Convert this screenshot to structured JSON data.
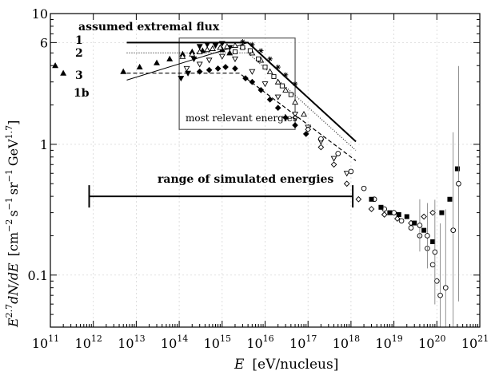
{
  "chart_data": {
    "type": "scatter",
    "title": "",
    "xlabel": "E  [eV/nucleus]",
    "ylabel": "E^{2.7} dN/dE  [cm^{-2} s^{-1} sr^{-1} GeV^{1.7}]",
    "x_scale": "log",
    "y_scale": "log",
    "xlim": [
      100000000000.0,
      1e+21
    ],
    "ylim": [
      0.04,
      10
    ],
    "grid": true,
    "x_ticks": [
      {
        "base": "10",
        "exp": "11",
        "value": 100000000000.0
      },
      {
        "base": "10",
        "exp": "12",
        "value": 1000000000000.0
      },
      {
        "base": "10",
        "exp": "13",
        "value": 10000000000000.0
      },
      {
        "base": "10",
        "exp": "14",
        "value": 100000000000000.0
      },
      {
        "base": "10",
        "exp": "15",
        "value": 1000000000000000.0
      },
      {
        "base": "10",
        "exp": "16",
        "value": 1e+16
      },
      {
        "base": "10",
        "exp": "17",
        "value": 1e+17
      },
      {
        "base": "10",
        "exp": "18",
        "value": 1e+18
      },
      {
        "base": "10",
        "exp": "19",
        "value": 1e+19
      },
      {
        "base": "10",
        "exp": "20",
        "value": 1e+20
      },
      {
        "base": "10",
        "exp": "21",
        "value": 1e+21
      }
    ],
    "y_ticks": [
      {
        "label": "10",
        "value": 10
      },
      {
        "label": "6",
        "value": 6
      },
      {
        "label": "1",
        "value": 1
      },
      {
        "label": "0.1",
        "value": 0.1
      }
    ],
    "annotations": {
      "extremal_header": "assumed extremal flux",
      "curve_labels": [
        "1",
        "2",
        "3",
        "1b"
      ],
      "box_label": "most relevant energies",
      "range_label": "range of simulated  energies"
    },
    "model_curves": [
      {
        "label": "1",
        "style": "solid-bold",
        "points": [
          [
            6000000000000.0,
            6
          ],
          [
            4000000000000000.0,
            6
          ],
          [
            1.3e+18,
            1.05
          ]
        ]
      },
      {
        "label": "2",
        "style": "dotted",
        "points": [
          [
            6000000000000.0,
            5
          ],
          [
            4000000000000000.0,
            5
          ],
          [
            1.3e+18,
            0.9
          ]
        ]
      },
      {
        "label": "3",
        "style": "dashed",
        "points": [
          [
            6000000000000.0,
            3.5
          ],
          [
            2500000000000000.0,
            3.5
          ],
          [
            1.3e+18,
            0.75
          ]
        ]
      },
      {
        "label": "1b",
        "style": "solid-thin",
        "points": [
          [
            6000000000000.0,
            3.1
          ],
          [
            4000000000000000.0,
            6
          ],
          [
            1.3e+18,
            1.05
          ]
        ]
      }
    ],
    "relevant_box": {
      "x": [
        100000000000000.0,
        5e+16
      ],
      "y": [
        1.3,
        6.5
      ]
    },
    "simulated_range": {
      "x": [
        800000000000.0,
        1.1e+18
      ],
      "y": 0.4
    },
    "series": [
      {
        "name": "",
        "marker": "triangle-up",
        "fill": "black",
        "points": [
          [
            130000000000.0,
            4.0
          ],
          [
            200000000000.0,
            3.5
          ],
          [
            5000000000000.0,
            3.6
          ],
          [
            12000000000000.0,
            3.9
          ],
          [
            30000000000000.0,
            4.2
          ],
          [
            60000000000000.0,
            4.5
          ],
          [
            120000000000000.0,
            4.9
          ],
          [
            200000000000000.0,
            5.1
          ],
          [
            350000000000000.0,
            5.2
          ],
          [
            600000000000000.0,
            5.4
          ],
          [
            1000000000000000.0,
            5.3
          ],
          [
            1500000000000000.0,
            5.0
          ]
        ]
      },
      {
        "name": "",
        "marker": "triangle-down",
        "fill": "black",
        "points": [
          [
            110000000000000.0,
            3.2
          ],
          [
            160000000000000.0,
            3.5
          ],
          [
            220000000000000.0,
            4.5
          ],
          [
            300000000000000.0,
            5.6
          ],
          [
            450000000000000.0,
            5.8
          ],
          [
            700000000000000.0,
            5.7
          ],
          [
            1000000000000000.0,
            5.9
          ],
          [
            1500000000000000.0,
            5.5
          ]
        ]
      },
      {
        "name": "",
        "marker": "triangle-up",
        "fill": "white",
        "points": [
          [
            120000000000000.0,
            4.7
          ],
          [
            200000000000000.0,
            4.9
          ],
          [
            300000000000000.0,
            5.1
          ],
          [
            450000000000000.0,
            5.3
          ],
          [
            600000000000000.0,
            5.4
          ],
          [
            900000000000000.0,
            5.5
          ],
          [
            1300000000000000.0,
            5.6
          ],
          [
            2000000000000000.0,
            5.7
          ],
          [
            3000000000000000.0,
            5.6
          ],
          [
            5000000000000000.0,
            5.0
          ],
          [
            8000000000000000.0,
            4.4
          ],
          [
            1.3e+16,
            3.6
          ],
          [
            2e+16,
            3.0
          ],
          [
            3e+16,
            2.6
          ],
          [
            5e+16,
            2.1
          ],
          [
            8e+16,
            1.7
          ]
        ]
      },
      {
        "name": "",
        "marker": "triangle-down",
        "fill": "white",
        "points": [
          [
            150000000000000.0,
            3.8
          ],
          [
            300000000000000.0,
            4.1
          ],
          [
            500000000000000.0,
            4.4
          ],
          [
            1000000000000000.0,
            4.7
          ],
          [
            2000000000000000.0,
            4.5
          ],
          [
            5000000000000000.0,
            3.6
          ],
          [
            1e+16,
            2.9
          ],
          [
            2e+16,
            2.3
          ],
          [
            5e+16,
            1.7
          ],
          [
            1e+17,
            1.35
          ],
          [
            2e+17,
            1.05
          ],
          [
            4e+17,
            0.78
          ],
          [
            8e+17,
            0.6
          ]
        ]
      },
      {
        "name": "",
        "marker": "diamond",
        "fill": "black",
        "points": [
          [
            300000000000000.0,
            3.6
          ],
          [
            500000000000000.0,
            3.7
          ],
          [
            800000000000000.0,
            3.8
          ],
          [
            1200000000000000.0,
            3.9
          ],
          [
            2000000000000000.0,
            3.8
          ],
          [
            3500000000000000.0,
            3.2
          ],
          [
            5000000000000000.0,
            3.0
          ],
          [
            8000000000000000.0,
            2.6
          ],
          [
            1.3e+16,
            2.2
          ],
          [
            2e+16,
            1.9
          ],
          [
            3e+16,
            1.6
          ],
          [
            5e+16,
            1.4
          ],
          [
            9e+16,
            1.2
          ]
        ]
      },
      {
        "name": "",
        "marker": "square",
        "fill": "white",
        "points": [
          [
            2000000000000000.0,
            5.1
          ],
          [
            3000000000000000.0,
            5.5
          ],
          [
            4500000000000000.0,
            5.2
          ],
          [
            7000000000000000.0,
            4.5
          ],
          [
            1e+16,
            3.9
          ],
          [
            1.6e+16,
            3.3
          ],
          [
            2.5e+16,
            2.8
          ],
          [
            4e+16,
            2.4
          ]
        ]
      },
      {
        "name": "",
        "marker": "star",
        "fill": "white",
        "points": [
          [
            3000000000000000.0,
            6.1
          ],
          [
            5000000000000000.0,
            5.8
          ],
          [
            8000000000000000.0,
            5.2
          ],
          [
            1.3e+16,
            4.5
          ],
          [
            2e+16,
            3.9
          ],
          [
            3e+16,
            3.4
          ],
          [
            5e+16,
            2.9
          ]
        ]
      },
      {
        "name": "",
        "marker": "circle",
        "fill": "white",
        "points": [
          [
            2e+17,
            1.1
          ],
          [
            5e+17,
            0.85
          ],
          [
            1e+18,
            0.62
          ],
          [
            2e+18,
            0.46
          ],
          [
            3.5e+18,
            0.38
          ],
          [
            6e+18,
            0.32
          ],
          [
            1e+19,
            0.3
          ],
          [
            1.5e+19,
            0.26
          ],
          [
            2.5e+19,
            0.23
          ],
          [
            4e+19,
            0.2
          ],
          [
            6e+19,
            0.16
          ],
          [
            8e+19,
            0.12
          ],
          [
            1e+20,
            0.09
          ]
        ]
      },
      {
        "name": "",
        "marker": "diamond",
        "fill": "white",
        "points": [
          [
            5e+16,
            1.6
          ],
          [
            1e+17,
            1.3
          ],
          [
            2e+17,
            0.95
          ],
          [
            4e+17,
            0.7
          ],
          [
            8e+17,
            0.5
          ],
          [
            1.5e+18,
            0.38
          ],
          [
            3e+18,
            0.32
          ],
          [
            6e+18,
            0.29
          ],
          [
            1.2e+19,
            0.27
          ],
          [
            2.5e+19,
            0.25
          ],
          [
            5e+19,
            0.28
          ],
          [
            8e+19,
            0.3
          ]
        ]
      },
      {
        "name": "",
        "marker": "square",
        "fill": "black",
        "points": [
          [
            3e+18,
            0.38
          ],
          [
            5e+18,
            0.33
          ],
          [
            8e+18,
            0.3
          ],
          [
            1.3e+19,
            0.29
          ],
          [
            2e+19,
            0.28
          ],
          [
            3e+19,
            0.25
          ],
          [
            5e+19,
            0.22
          ],
          [
            8e+19,
            0.18
          ],
          [
            1.3e+20,
            0.3
          ],
          [
            2e+20,
            0.38
          ],
          [
            3e+20,
            0.65
          ]
        ]
      },
      {
        "name": "",
        "marker": "circle",
        "fill": "white",
        "errorbars": true,
        "points": [
          [
            4e+19,
            0.24,
            0.2
          ],
          [
            6e+19,
            0.2,
            0.25
          ],
          [
            9e+19,
            0.15,
            0.4
          ],
          [
            1.2e+20,
            0.07,
            0.55
          ],
          [
            1.6e+20,
            0.08,
            0.6
          ],
          [
            2.4e+20,
            0.22,
            0.75
          ],
          [
            3.2e+20,
            0.5,
            0.9
          ]
        ]
      }
    ]
  }
}
